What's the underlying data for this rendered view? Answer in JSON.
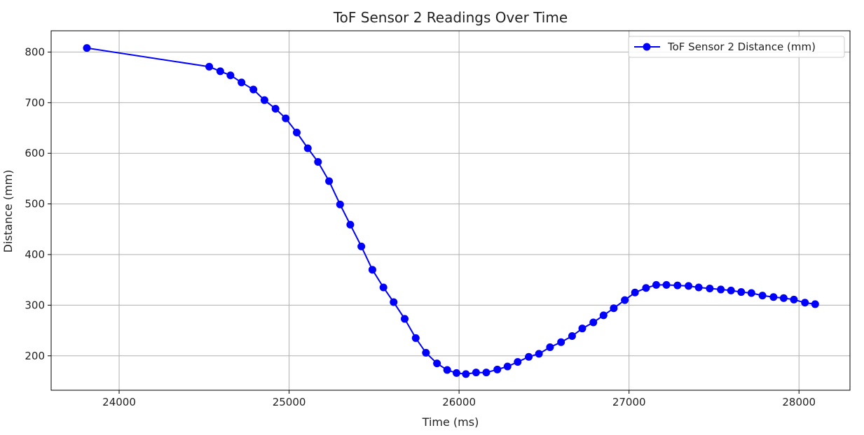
{
  "chart_data": {
    "type": "line",
    "title": "ToF Sensor 2 Readings Over Time",
    "xlabel": "Time (ms)",
    "ylabel": "Distance (mm)",
    "xlim": [
      23600,
      28300
    ],
    "ylim": [
      132,
      842
    ],
    "xticks": [
      24000,
      25000,
      26000,
      27000,
      28000
    ],
    "yticks": [
      200,
      300,
      400,
      500,
      600,
      700,
      800
    ],
    "grid": true,
    "legend_position": "top-right",
    "series": [
      {
        "name": "ToF Sensor 2 Distance (mm)",
        "color": "#0000ff",
        "marker": "circle",
        "x": [
          23810,
          24530,
          24595,
          24655,
          24720,
          24790,
          24855,
          24920,
          24980,
          25045,
          25110,
          25170,
          25235,
          25300,
          25360,
          25425,
          25490,
          25555,
          25615,
          25680,
          25745,
          25805,
          25870,
          25930,
          25985,
          26040,
          26100,
          26160,
          26225,
          26285,
          26345,
          26410,
          26470,
          26535,
          26600,
          26665,
          26725,
          26790,
          26850,
          26910,
          26975,
          27035,
          27100,
          27160,
          27220,
          27285,
          27350,
          27410,
          27475,
          27540,
          27600,
          27660,
          27720,
          27785,
          27850,
          27910,
          27970,
          28035,
          28095
        ],
        "y": [
          808,
          771,
          762,
          754,
          740,
          726,
          705,
          688,
          669,
          641,
          610,
          583,
          545,
          499,
          459,
          416,
          370,
          335,
          306,
          273,
          235,
          206,
          185,
          172,
          166,
          164,
          167,
          167,
          173,
          179,
          188,
          198,
          204,
          217,
          227,
          239,
          254,
          266,
          280,
          294,
          310,
          325,
          334,
          340,
          340,
          339,
          338,
          335,
          333,
          331,
          329,
          326,
          324,
          319,
          316,
          314,
          311,
          305,
          302
        ]
      }
    ]
  }
}
